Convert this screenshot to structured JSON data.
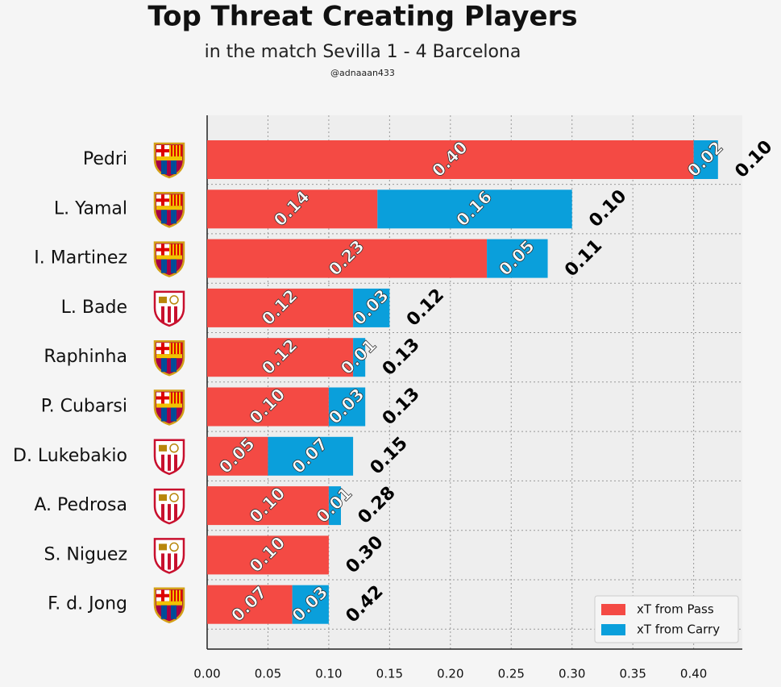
{
  "chart_data": {
    "type": "stacked-barh",
    "title": "Top Threat Creating Players",
    "subtitle": "in the match Sevilla 1 - 4 Barcelona",
    "credit": "@adnaaan433",
    "categories": [
      "Pedri",
      "L. Yamal",
      "I. Martinez",
      "L. Bade",
      "Raphinha",
      "P. Cubarsi",
      "D. Lukebakio",
      "A. Pedrosa",
      "S. Niguez",
      "F. d. Jong"
    ],
    "series": [
      {
        "name": "xT from Pass",
        "color": "#f44a44",
        "values": [
          0.4,
          0.14,
          0.23,
          0.12,
          0.12,
          0.1,
          0.05,
          0.1,
          0.1,
          0.07
        ],
        "value_labels": [
          "0.40",
          "0.14",
          "0.23",
          "0.12",
          "0.12",
          "0.10",
          "0.05",
          "0.10",
          "0.10",
          "0.07"
        ]
      },
      {
        "name": "xT from Carry",
        "color": "#0a9fdb",
        "values": [
          0.02,
          0.16,
          0.05,
          0.03,
          0.01,
          0.03,
          0.07,
          0.01,
          0,
          0.03
        ],
        "value_labels": [
          "0.02",
          "0.16",
          "0.05",
          "0.03",
          "0.01",
          "0.03",
          "0.07",
          "0.01",
          null,
          "0.03"
        ]
      }
    ],
    "annotations": [
      "0.10",
      "0.10",
      "0.11",
      "0.12",
      "0.13",
      "0.13",
      "0.15",
      "0.28",
      "0.30",
      "0.42"
    ],
    "xlim": [
      0,
      0.44
    ],
    "xticks": [
      {
        "value": 0,
        "label": "0.00"
      },
      {
        "value": 0.05,
        "label": "0.05"
      },
      {
        "value": 0.1,
        "label": "0.10"
      },
      {
        "value": 0.15,
        "label": "0.15"
      },
      {
        "value": 0.2,
        "label": "0.20"
      },
      {
        "value": 0.25,
        "label": "0.25"
      },
      {
        "value": 0.3,
        "label": "0.30"
      },
      {
        "value": 0.35,
        "label": "0.35"
      },
      {
        "value": 0.4,
        "label": "0.40"
      }
    ],
    "grid": true,
    "legend": "lower right"
  }
}
